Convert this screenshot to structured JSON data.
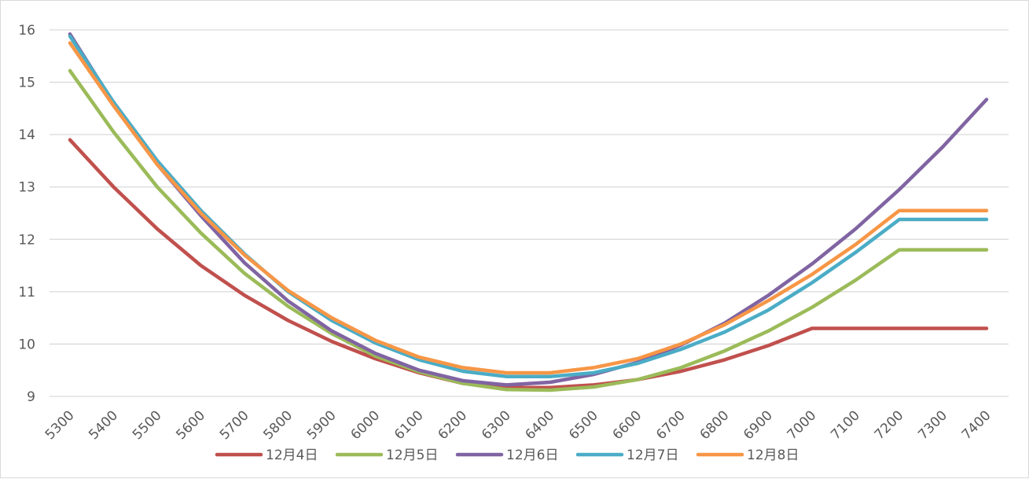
{
  "chart_data": {
    "type": "line",
    "title": "",
    "xlabel": "",
    "ylabel": "",
    "ylim": [
      9,
      16
    ],
    "yticks": [
      "9",
      "10",
      "11",
      "12",
      "13",
      "14",
      "15",
      "16"
    ],
    "grid": true,
    "legend_position": "bottom",
    "categories": [
      "5300",
      "5400",
      "5500",
      "5600",
      "5700",
      "5800",
      "5900",
      "6000",
      "6100",
      "6200",
      "6300",
      "6400",
      "6500",
      "6600",
      "6700",
      "6800",
      "6900",
      "7000",
      "7100",
      "7200",
      "7300",
      "7400"
    ],
    "series": [
      {
        "name": "12月4日",
        "color": "#c0504d",
        "values": [
          13.9,
          13.0,
          12.2,
          11.5,
          10.93,
          10.45,
          10.05,
          9.72,
          9.45,
          9.25,
          9.17,
          9.17,
          9.22,
          9.32,
          9.48,
          9.7,
          9.97,
          10.3,
          10.3,
          10.3,
          10.3,
          10.3
        ]
      },
      {
        "name": "12月5日",
        "color": "#9bbb59",
        "values": [
          15.22,
          14.05,
          13.0,
          12.12,
          11.35,
          10.72,
          10.2,
          9.77,
          9.47,
          9.25,
          9.13,
          9.12,
          9.18,
          9.32,
          9.55,
          9.87,
          10.25,
          10.7,
          11.22,
          11.8,
          11.8,
          11.8
        ]
      },
      {
        "name": "12月6日",
        "color": "#8064a2",
        "values": [
          15.92,
          14.6,
          13.43,
          12.45,
          11.55,
          10.82,
          10.25,
          9.82,
          9.5,
          9.3,
          9.22,
          9.27,
          9.42,
          9.65,
          9.98,
          10.4,
          10.93,
          11.53,
          12.2,
          12.95,
          13.77,
          14.67
        ]
      },
      {
        "name": "12月7日",
        "color": "#4bacc6",
        "values": [
          15.88,
          14.62,
          13.5,
          12.55,
          11.72,
          11.0,
          10.45,
          10.02,
          9.7,
          9.48,
          9.38,
          9.38,
          9.45,
          9.63,
          9.9,
          10.23,
          10.65,
          11.17,
          11.75,
          12.38,
          12.38,
          12.38
        ]
      },
      {
        "name": "12月8日",
        "color": "#f79646",
        "values": [
          15.75,
          14.55,
          13.43,
          12.5,
          11.7,
          11.02,
          10.5,
          10.07,
          9.75,
          9.55,
          9.45,
          9.45,
          9.55,
          9.72,
          10.0,
          10.37,
          10.83,
          11.33,
          11.9,
          12.55,
          12.55,
          12.55
        ]
      }
    ]
  }
}
